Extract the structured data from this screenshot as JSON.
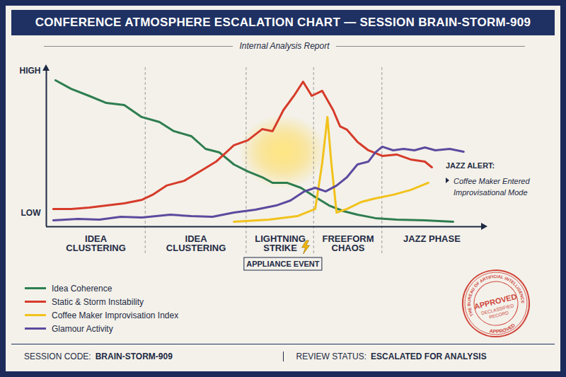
{
  "chart_data": {
    "type": "line",
    "title": "CONFERENCE ATMOSPHERE ESCALATION CHART — SESSION BRAIN-STORM-909",
    "subtitle": "Internal Analysis Report",
    "xlim": [
      0,
      100
    ],
    "ylim": [
      0,
      100
    ],
    "yticks": [
      {
        "value": 9,
        "label": "LOW"
      },
      {
        "value": 100,
        "label": "HIGH"
      }
    ],
    "tick_labels": "y",
    "grid": false,
    "legend": "bottom-left",
    "phases": [
      {
        "label": "IDEA CLUSTERING",
        "start": 0,
        "end": 22.8
      },
      {
        "label": "IDEA CLUSTERING",
        "start": 22.8,
        "end": 46
      },
      {
        "label": "LIGHTNING STRIKE",
        "start": 46,
        "end": 61.5
      },
      {
        "label": "FREEFORM CHAOS",
        "start": 61.5,
        "end": 77.2
      },
      {
        "label": "JAZZ PHASE",
        "start": 77.2,
        "end": 100
      }
    ],
    "event": {
      "label": "APPLIANCE EVENT",
      "start": 45.5,
      "end": 63.4
    },
    "annotation": {
      "title": "JAZZ ALERT:",
      "text": "Coffee Maker Entered Improvisational Mode"
    },
    "series": [
      {
        "name": "Idea Coherence",
        "color": "#2e7d4f",
        "x": [
          2.1,
          5.7,
          9.8,
          13.8,
          17.9,
          21.9,
          26.0,
          29.3,
          33.3,
          36.6,
          39.8,
          43.1,
          46.3,
          49.6,
          52.0,
          55.3,
          58.5,
          61.8,
          65.0,
          68.3,
          71.5,
          75.6,
          80.5,
          87.0,
          93.5
        ],
        "values": [
          94.1,
          88.6,
          84.1,
          79.5,
          78.2,
          70.5,
          67.3,
          61.4,
          58.2,
          50.0,
          47.7,
          40.0,
          35.5,
          31.8,
          28.2,
          28.2,
          25.0,
          19.1,
          13.6,
          10.0,
          7.7,
          5.5,
          4.5,
          4.1,
          3.2
        ]
      },
      {
        "name": "Static & Storm Instability",
        "color": "#d63b2a",
        "x": [
          1.6,
          5.7,
          9.8,
          13.8,
          17.9,
          22.0,
          24.4,
          27.6,
          31.7,
          35.8,
          39.0,
          43.1,
          46.3,
          49.6,
          52.0,
          54.5,
          56.9,
          59.0,
          61.0,
          63.4,
          65.9,
          67.5,
          69.1,
          71.5,
          74.0,
          77.2,
          80.5,
          83.7,
          87.0,
          88.6
        ],
        "values": [
          11.4,
          11.4,
          12.3,
          13.6,
          15.0,
          17.3,
          20.5,
          26.4,
          29.5,
          36.4,
          41.8,
          52.3,
          55.5,
          62.7,
          61.4,
          75.0,
          84.1,
          93.2,
          84.1,
          87.3,
          75.0,
          64.5,
          62.3,
          54.5,
          49.1,
          45.5,
          46.4,
          43.2,
          41.8,
          38.2
        ]
      },
      {
        "name": "Coffee Maker Improvisation Index",
        "color": "#f2c21b",
        "x": [
          43.1,
          51.2,
          57.7,
          61.8,
          63.4,
          64.6,
          65.5,
          66.7,
          69.1,
          72.4,
          75.6,
          79.7,
          83.7,
          87.8
        ],
        "values": [
          3.2,
          4.5,
          6.8,
          11.4,
          40.9,
          70.5,
          40.9,
          9.1,
          11.4,
          15.9,
          18.2,
          20.5,
          23.6,
          28.2
        ]
      },
      {
        "name": "Glamour Activity",
        "color": "#5b4a9e",
        "x": [
          1.6,
          7.3,
          12.2,
          17.1,
          22.0,
          28.5,
          33.3,
          38.2,
          43.1,
          48.0,
          52.8,
          56.1,
          59.3,
          61.8,
          64.2,
          66.7,
          69.1,
          71.5,
          74.0,
          75.6,
          77.2,
          79.7,
          82.1,
          84.6,
          87.0,
          89.4,
          92.7,
          95.9
        ],
        "values": [
          4.1,
          5.0,
          4.5,
          6.4,
          5.9,
          7.7,
          6.8,
          6.4,
          9.1,
          10.9,
          13.6,
          16.8,
          22.7,
          25.0,
          22.7,
          26.4,
          31.8,
          40.0,
          41.8,
          47.7,
          51.4,
          49.1,
          50.0,
          49.1,
          50.9,
          49.1,
          50.0,
          48.2
        ]
      }
    ],
    "footer": [
      {
        "label": "SESSION CODE:",
        "value": "BRAIN-STORM-909"
      },
      {
        "label": "REVIEW STATUS:",
        "value": "ESCALATED FOR ANALYSIS"
      }
    ],
    "stamp": {
      "ring": "THE BUREAU OF ARTIFICIAL INTELLIGENCE",
      "ring_bottom": "APPROVED",
      "main": "APPROVED",
      "sub": "DECLASSIFIED RECORD"
    }
  }
}
